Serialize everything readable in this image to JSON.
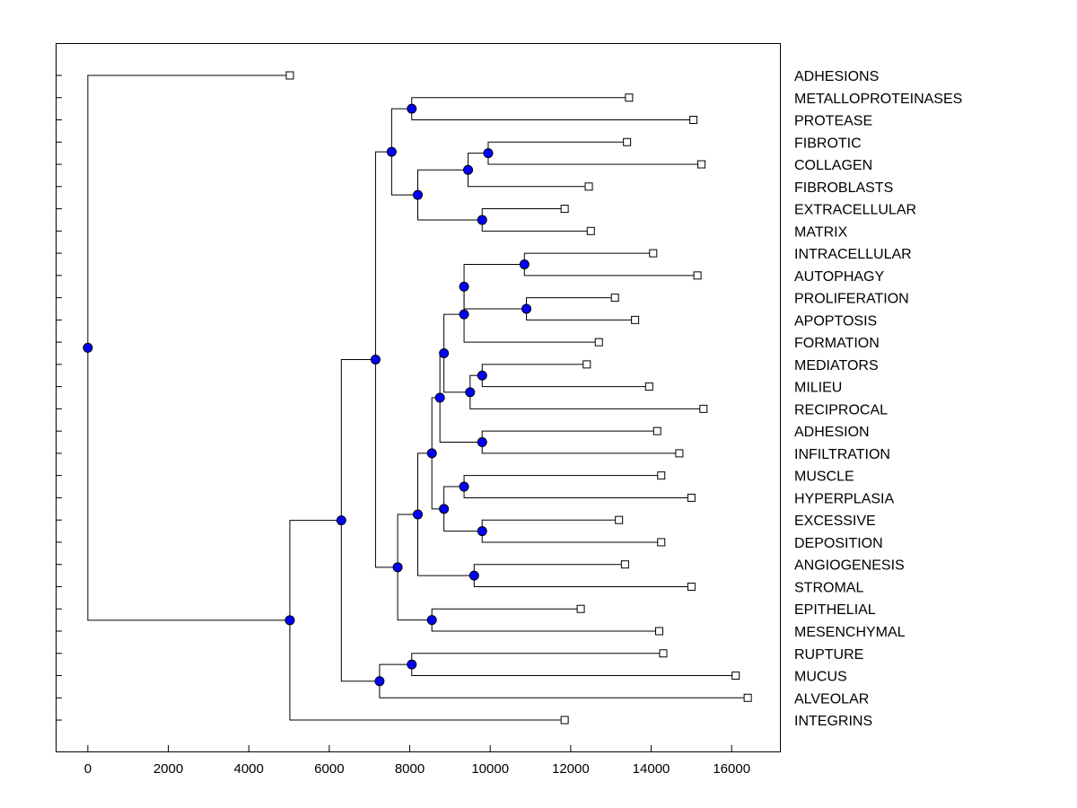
{
  "chart_data": {
    "type": "dendrogram",
    "title": "",
    "xlabel": "",
    "ylabel": "",
    "xlim": [
      -800,
      17200
    ],
    "x_ticks": [
      0,
      2000,
      4000,
      6000,
      8000,
      10000,
      12000,
      14000,
      16000
    ],
    "x_tick_labels": [
      "0",
      "2000",
      "4000",
      "6000",
      "8000",
      "10000",
      "12000",
      "14000",
      "16000"
    ],
    "leaves": [
      {
        "id": "L1",
        "label": "ADHESIONS",
        "x": 5020
      },
      {
        "id": "L2",
        "label": "METALLOPROTEINASES",
        "x": 13450
      },
      {
        "id": "L3",
        "label": "PROTEASE",
        "x": 15050
      },
      {
        "id": "L4",
        "label": "FIBROTIC",
        "x": 13400
      },
      {
        "id": "L5",
        "label": "COLLAGEN",
        "x": 15250
      },
      {
        "id": "L6",
        "label": "FIBROBLASTS",
        "x": 12450
      },
      {
        "id": "L7",
        "label": "EXTRACELLULAR",
        "x": 11850
      },
      {
        "id": "L8",
        "label": "MATRIX",
        "x": 12500
      },
      {
        "id": "L9",
        "label": "INTRACELLULAR",
        "x": 14050
      },
      {
        "id": "L10",
        "label": "AUTOPHAGY",
        "x": 15150
      },
      {
        "id": "L11",
        "label": "PROLIFERATION",
        "x": 13100
      },
      {
        "id": "L12",
        "label": "APOPTOSIS",
        "x": 13600
      },
      {
        "id": "L13",
        "label": "FORMATION",
        "x": 12700
      },
      {
        "id": "L14",
        "label": "MEDIATORS",
        "x": 12400
      },
      {
        "id": "L15",
        "label": "MILIEU",
        "x": 13950
      },
      {
        "id": "L16",
        "label": "RECIPROCAL",
        "x": 15300
      },
      {
        "id": "L17",
        "label": "ADHESION",
        "x": 14150
      },
      {
        "id": "L18",
        "label": "INFILTRATION",
        "x": 14700
      },
      {
        "id": "L19",
        "label": "MUSCLE",
        "x": 14250
      },
      {
        "id": "L20",
        "label": "HYPERPLASIA",
        "x": 15000
      },
      {
        "id": "L21",
        "label": "EXCESSIVE",
        "x": 13200
      },
      {
        "id": "L22",
        "label": "DEPOSITION",
        "x": 14250
      },
      {
        "id": "L23",
        "label": "ANGIOGENESIS",
        "x": 13350
      },
      {
        "id": "L24",
        "label": "STROMAL",
        "x": 15000
      },
      {
        "id": "L25",
        "label": "EPITHELIAL",
        "x": 12250
      },
      {
        "id": "L26",
        "label": "MESENCHYMAL",
        "x": 14200
      },
      {
        "id": "L27",
        "label": "RUPTURE",
        "x": 14300
      },
      {
        "id": "L28",
        "label": "MUCUS",
        "x": 16100
      },
      {
        "id": "L29",
        "label": "ALVEOLAR",
        "x": 16400
      },
      {
        "id": "L30",
        "label": "INTEGRINS",
        "x": 11850
      }
    ],
    "merges": [
      {
        "id": "N1",
        "x": 8050,
        "children": [
          "L2",
          "L3"
        ]
      },
      {
        "id": "N2",
        "x": 9950,
        "children": [
          "L4",
          "L5"
        ]
      },
      {
        "id": "N3",
        "x": 9450,
        "children": [
          "N2",
          "L6"
        ]
      },
      {
        "id": "N4",
        "x": 9800,
        "children": [
          "L7",
          "L8"
        ]
      },
      {
        "id": "N5",
        "x": 8200,
        "children": [
          "N3",
          "N4"
        ]
      },
      {
        "id": "N6",
        "x": 7550,
        "children": [
          "N1",
          "N5"
        ]
      },
      {
        "id": "N7",
        "x": 10850,
        "children": [
          "L9",
          "L10"
        ]
      },
      {
        "id": "N8",
        "x": 10900,
        "children": [
          "L11",
          "L12"
        ]
      },
      {
        "id": "N9",
        "x": 9350,
        "children": [
          "N7",
          "N8"
        ]
      },
      {
        "id": "N10",
        "x": 9350,
        "children": [
          "N9",
          "L13"
        ]
      },
      {
        "id": "N11",
        "x": 9800,
        "children": [
          "L14",
          "L15"
        ]
      },
      {
        "id": "N12",
        "x": 9500,
        "children": [
          "N11",
          "L16"
        ]
      },
      {
        "id": "N13",
        "x": 8850,
        "children": [
          "N10",
          "N12"
        ]
      },
      {
        "id": "N14",
        "x": 9800,
        "children": [
          "L17",
          "L18"
        ]
      },
      {
        "id": "N15",
        "x": 8750,
        "children": [
          "N13",
          "N14"
        ]
      },
      {
        "id": "N16",
        "x": 9350,
        "children": [
          "L19",
          "L20"
        ]
      },
      {
        "id": "N17",
        "x": 9800,
        "children": [
          "L21",
          "L22"
        ]
      },
      {
        "id": "N18",
        "x": 8850,
        "children": [
          "N16",
          "N17"
        ]
      },
      {
        "id": "N19",
        "x": 8550,
        "children": [
          "N15",
          "N18"
        ]
      },
      {
        "id": "N20",
        "x": 9600,
        "children": [
          "L23",
          "L24"
        ]
      },
      {
        "id": "N21",
        "x": 8200,
        "children": [
          "N19",
          "N20"
        ]
      },
      {
        "id": "N22",
        "x": 8550,
        "children": [
          "L25",
          "L26"
        ]
      },
      {
        "id": "N23",
        "x": 7700,
        "children": [
          "N21",
          "N22"
        ]
      },
      {
        "id": "N24",
        "x": 7150,
        "children": [
          "N6",
          "N23"
        ]
      },
      {
        "id": "N25",
        "x": 8050,
        "children": [
          "L27",
          "L28"
        ]
      },
      {
        "id": "N26",
        "x": 7250,
        "children": [
          "N25",
          "L29"
        ]
      },
      {
        "id": "N27",
        "x": 6300,
        "children": [
          "N24",
          "N26"
        ]
      },
      {
        "id": "N28",
        "x": 5020,
        "children": [
          "N27",
          "L30"
        ]
      },
      {
        "id": "N29",
        "x": 0,
        "children": [
          "L1",
          "N28"
        ]
      }
    ],
    "colors": {
      "node_fill": "#0000ff",
      "leaf_fill": "#ffffff",
      "line": "#000000"
    }
  }
}
